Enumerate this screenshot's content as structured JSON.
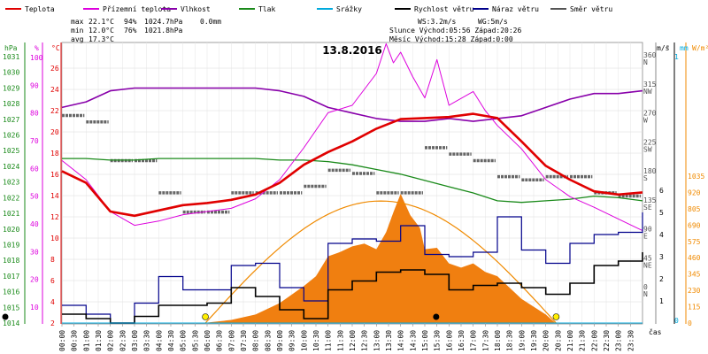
{
  "chart_data": {
    "type": "line",
    "title": "13.8.2016",
    "legend": [
      {
        "name": "Teplota",
        "color": "#e00000"
      },
      {
        "name": "Přízemní teplota",
        "color": "#dd00dd"
      },
      {
        "name": "Vlhkost",
        "color": "#8800aa"
      },
      {
        "name": "Tlak",
        "color": "#1a8a1a"
      },
      {
        "name": "Srážky",
        "color": "#00aadd"
      },
      {
        "name": "Rychlost větru",
        "color": "#000000"
      },
      {
        "name": "Náraz větru",
        "color": "#00008b"
      },
      {
        "name": "Směr větru",
        "color": "#555555"
      }
    ],
    "stats": {
      "rows": [
        {
          "label": "max",
          "temp": "22.1°C",
          "hum": "94%",
          "press": "1024.7hPa",
          "rain": "0.0mm"
        },
        {
          "label": "min",
          "temp": "12.0°C",
          "hum": "76%",
          "press": "1021.8hPa",
          "rain": ""
        },
        {
          "label": "avg",
          "temp": "17.3°C",
          "hum": "",
          "press": "",
          "rain": ""
        }
      ],
      "ws": "WS:3.2m/s",
      "wg": "WG:5m/s",
      "sun": "Slunce Východ:05:56  Západ:20:26",
      "moon": "Měsíc  Východ:15:28  Západ:0:00"
    },
    "axes": {
      "hpa_unit": "hPa",
      "hpa_ticks": [
        1014,
        1015,
        1016,
        1017,
        1018,
        1019,
        1020,
        1021,
        1022,
        1023,
        1024,
        1025,
        1026,
        1027,
        1028,
        1029,
        1030,
        1031
      ],
      "pct_unit": "%",
      "pct_ticks": [
        10,
        20,
        30,
        40,
        50,
        60,
        70,
        80,
        90,
        100
      ],
      "c_unit": "°C",
      "c_ticks": [
        2,
        4,
        6,
        8,
        10,
        12,
        14,
        16,
        18,
        20,
        22,
        24,
        26
      ],
      "deg_unit": "°",
      "deg_ticks": [
        "0",
        "45",
        "90",
        "135",
        "180",
        "225",
        "270",
        "315",
        "360"
      ],
      "dir_ticks": [
        "N",
        "NE",
        "E",
        "SE",
        "S",
        "SW",
        "W",
        "NW",
        "N"
      ],
      "ms_unit": "m/s",
      "ms_ticks": [
        1,
        2,
        3,
        4,
        5,
        6
      ],
      "mm_unit": "mm",
      "mm_ticks": [
        0,
        1
      ],
      "wm2_unit": "W/m²",
      "wm2_ticks": [
        0,
        115,
        230,
        345,
        460,
        575,
        690,
        805,
        920,
        1035
      ],
      "xlabel": "čas",
      "x_ticks": [
        "00:00",
        "00:30",
        "01:00",
        "01:30",
        "02:00",
        "02:30",
        "03:00",
        "03:30",
        "04:00",
        "04:30",
        "05:00",
        "05:30",
        "06:00",
        "06:30",
        "07:00",
        "07:30",
        "08:00",
        "08:30",
        "09:00",
        "09:30",
        "10:00",
        "10:30",
        "11:00",
        "11:30",
        "12:00",
        "12:30",
        "13:00",
        "13:30",
        "14:00",
        "14:30",
        "15:00",
        "15:30",
        "16:00",
        "16:30",
        "17:00",
        "17:30",
        "18:00",
        "18:30",
        "19:00",
        "19:30",
        "20:00",
        "20:30",
        "21:00",
        "21:30",
        "22:00",
        "22:30",
        "23:00",
        "23:30"
      ]
    },
    "temperature": {
      "x": [
        0,
        1,
        2,
        3,
        4,
        5,
        6,
        7,
        8,
        9,
        10,
        11,
        12,
        13,
        14,
        15,
        16,
        17,
        18,
        19,
        20,
        21,
        22,
        23,
        24
      ],
      "y": [
        16.3,
        15.2,
        12.5,
        12.1,
        12.6,
        13.1,
        13.3,
        13.6,
        14.1,
        15.2,
        16.9,
        18.1,
        19.1,
        20.3,
        21.2,
        21.3,
        21.4,
        21.7,
        21.3,
        19.1,
        16.8,
        15.5,
        14.4,
        14.1,
        14.3
      ]
    },
    "ground_temperature": {
      "x": [
        0,
        1,
        2,
        3,
        4,
        5,
        6,
        7,
        8,
        9,
        10,
        11,
        12,
        13,
        13.4,
        13.7,
        14,
        14.5,
        15,
        15.5,
        16,
        17,
        17.5,
        18,
        19,
        20,
        21,
        22,
        23,
        24
      ],
      "y": [
        17.3,
        15.5,
        12.5,
        11.2,
        11.6,
        12.2,
        12.5,
        12.8,
        13.7,
        15.5,
        18.5,
        21.8,
        22.5,
        25.5,
        28.3,
        26.5,
        27.5,
        25.2,
        23.2,
        26.8,
        22.5,
        23.8,
        22.0,
        20.6,
        18.4,
        15.5,
        13.9,
        12.9,
        11.8,
        10.7
      ]
    },
    "humidity": {
      "x": [
        0,
        1,
        2,
        3,
        4,
        5,
        6,
        7,
        8,
        9,
        10,
        11,
        12,
        13,
        14,
        15,
        16,
        17,
        18,
        19,
        20,
        21,
        22,
        23,
        24
      ],
      "y": [
        82,
        84,
        88,
        89,
        89,
        89,
        89,
        89,
        89,
        88,
        86,
        82,
        80,
        78,
        77,
        77,
        78,
        77,
        78,
        79,
        82,
        85,
        87,
        87,
        88
      ]
    },
    "pressure": {
      "x": [
        0,
        1,
        2,
        3,
        4,
        5,
        6,
        7,
        8,
        9,
        10,
        11,
        12,
        13,
        14,
        15,
        16,
        17,
        18,
        19,
        20,
        21,
        22,
        23,
        24
      ],
      "y": [
        1024.5,
        1024.5,
        1024.4,
        1024.4,
        1024.5,
        1024.5,
        1024.5,
        1024.5,
        1024.5,
        1024.4,
        1024.4,
        1024.3,
        1024.1,
        1023.8,
        1023.5,
        1023.1,
        1022.7,
        1022.3,
        1021.8,
        1021.7,
        1021.8,
        1021.9,
        1022.1,
        1022.0,
        1021.8
      ]
    },
    "rain_mm": 0.0,
    "wind_speed": {
      "x": [
        0,
        1,
        2,
        3,
        4,
        5,
        6,
        7,
        8,
        9,
        10,
        11,
        12,
        13,
        14,
        15,
        16,
        17,
        18,
        19,
        20,
        21,
        22,
        23,
        24
      ],
      "y": [
        0.4,
        0.2,
        0.0,
        0.3,
        0.8,
        0.8,
        0.9,
        1.6,
        1.2,
        0.6,
        0.2,
        1.5,
        1.9,
        2.3,
        2.4,
        2.2,
        1.5,
        1.7,
        1.8,
        1.6,
        1.3,
        1.8,
        2.6,
        2.8,
        3.2
      ]
    },
    "wind_gust": {
      "x": [
        0,
        1,
        2,
        3,
        4,
        5,
        6,
        7,
        8,
        9,
        10,
        11,
        12,
        13,
        14,
        15,
        16,
        17,
        18,
        19,
        20,
        21,
        22,
        23,
        24
      ],
      "y": [
        0.8,
        0.4,
        0.0,
        0.9,
        2.1,
        1.5,
        1.5,
        2.6,
        2.7,
        1.6,
        1.0,
        3.6,
        3.8,
        3.7,
        4.4,
        3.1,
        3.0,
        3.2,
        4.8,
        3.3,
        2.7,
        3.6,
        4.0,
        4.1,
        5.0
      ]
    },
    "wind_direction": {
      "x": [
        0,
        1,
        2,
        3,
        4,
        5,
        6,
        7,
        8,
        9,
        10,
        11,
        12,
        13,
        14,
        15,
        16,
        17,
        18,
        19,
        20,
        21,
        22,
        23,
        24
      ],
      "y": [
        270,
        260,
        200,
        200,
        150,
        120,
        120,
        150,
        150,
        150,
        160,
        185,
        180,
        150,
        150,
        220,
        210,
        200,
        175,
        170,
        175,
        175,
        150,
        145,
        145
      ]
    },
    "solar_radiation": {
      "x": [
        0,
        5.5,
        6,
        7,
        8,
        9,
        10,
        10.5,
        11,
        11.5,
        12,
        12.5,
        13,
        13.4,
        13.7,
        14,
        14.4,
        14.8,
        15,
        15.5,
        16,
        16.5,
        17,
        17.5,
        18,
        19,
        20,
        20.4,
        24
      ],
      "y": [
        0,
        0,
        3,
        22,
        60,
        140,
        260,
        330,
        470,
        500,
        540,
        560,
        520,
        640,
        780,
        910,
        760,
        670,
        520,
        530,
        420,
        390,
        420,
        360,
        330,
        170,
        60,
        0,
        0
      ]
    },
    "sunrise_hour": 5.93,
    "sunset_hour": 20.43,
    "moonrise_hour": 15.47,
    "moonset_hour": 0.0
  }
}
